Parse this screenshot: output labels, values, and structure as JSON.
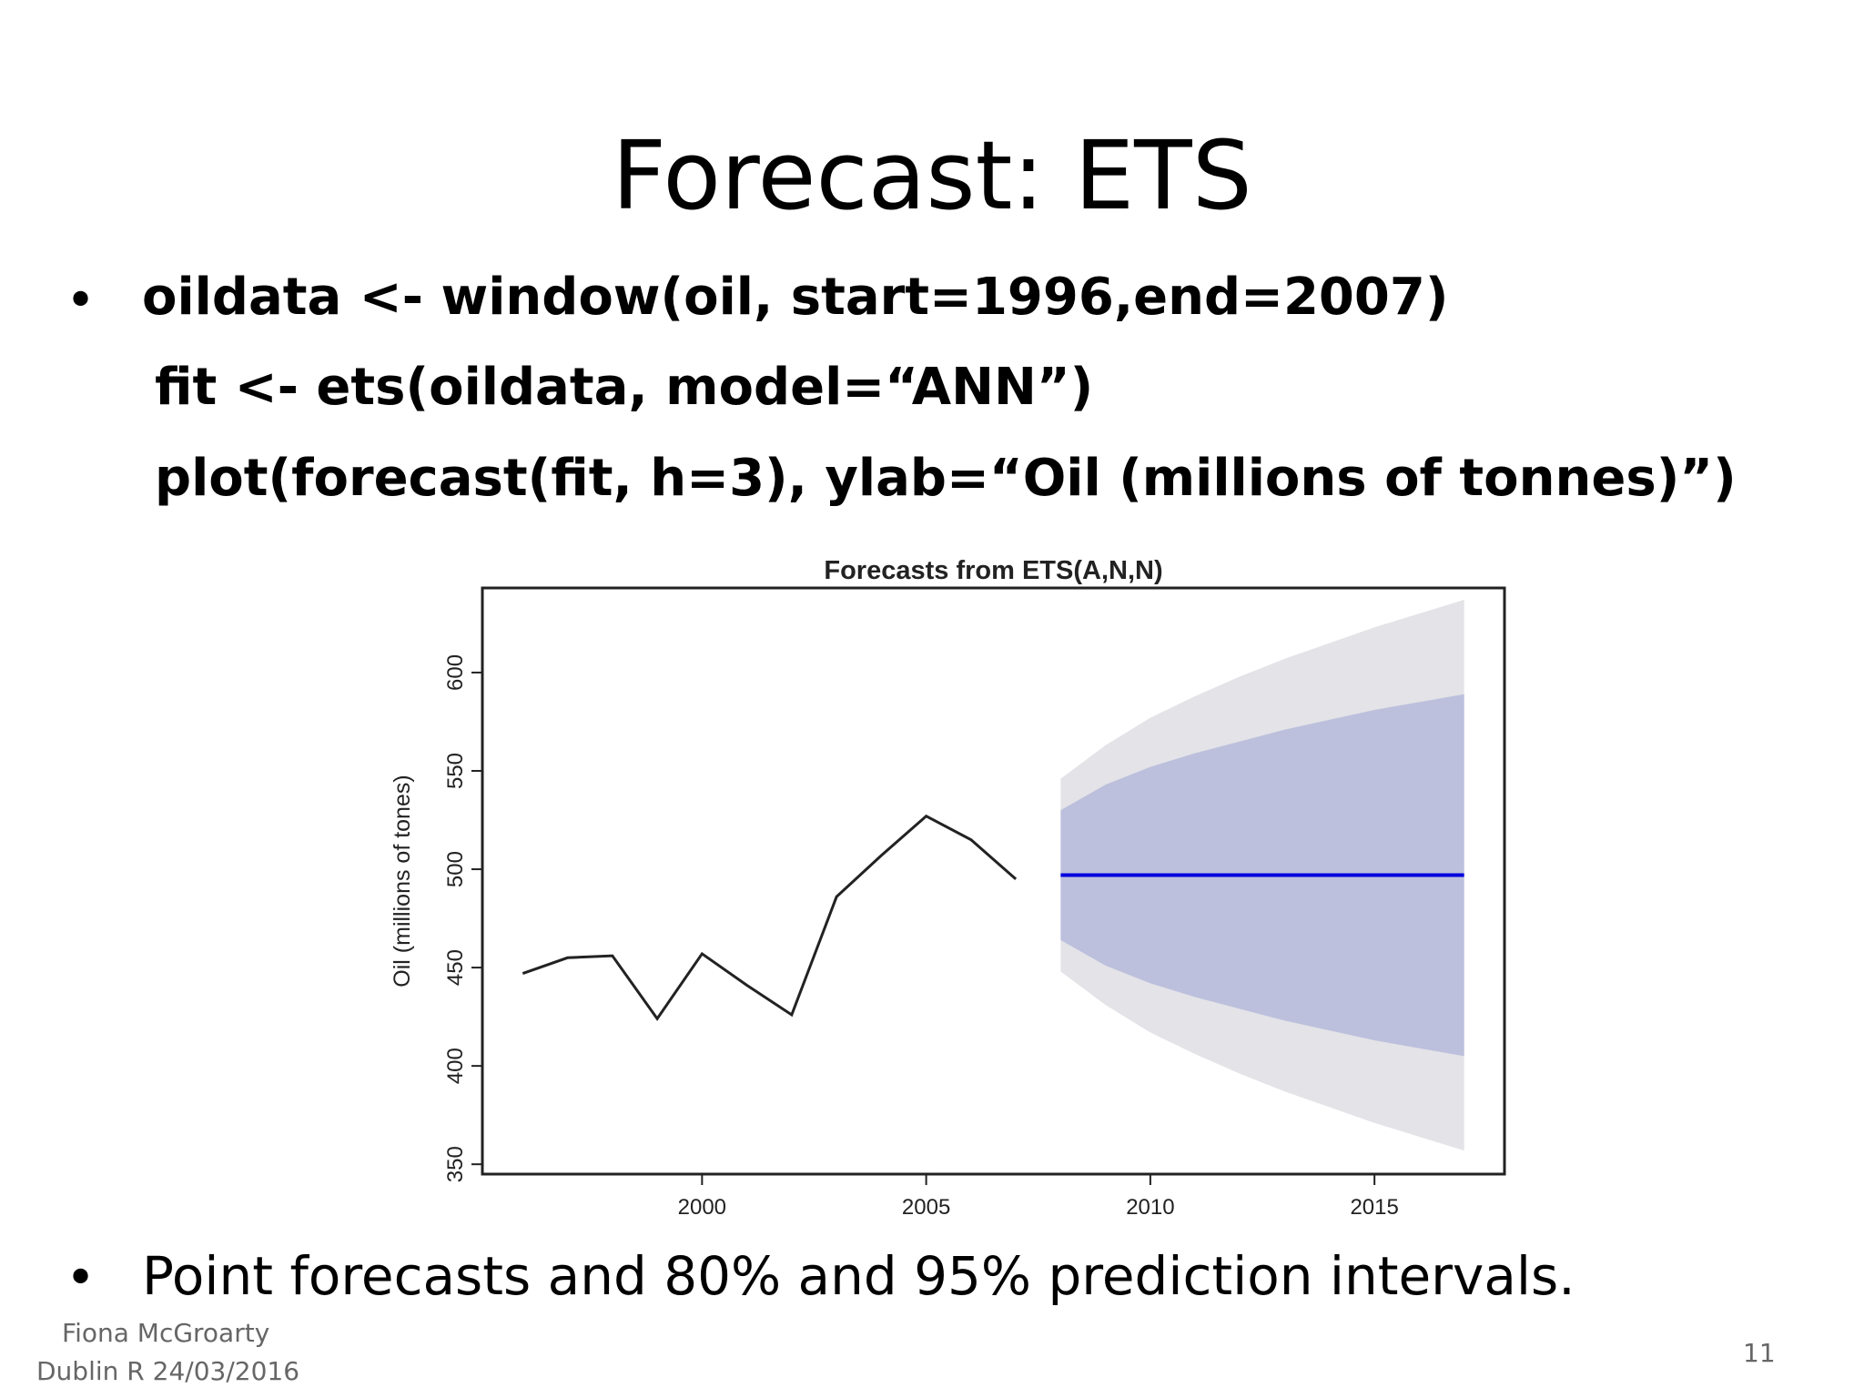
{
  "slide": {
    "title": "Forecast: ETS",
    "code_lines": [
      "oildata <- window(oil, start=1996,end=2007)",
      "fit <- ets(oildata, model=“ANN”)",
      "plot(forecast(fit, h=3), ylab=“Oil (millions of tonnes)”)"
    ],
    "bullet_glyph": "•",
    "bottom_bullet": "Point forecasts and 80% and 95% prediction intervals.",
    "footer_author": "Fiona McGroarty",
    "footer_event": "Dublin R 24/03/2016",
    "page_number": "11"
  },
  "chart_data": {
    "type": "line",
    "title": "Forecasts from ETS(A,N,N)",
    "ylabel": "Oil (millions of tones)",
    "xlabel": "",
    "xlim": [
      1995.1,
      2017.9
    ],
    "ylim": [
      345,
      643
    ],
    "x_ticks": [
      2000,
      2005,
      2010,
      2015
    ],
    "y_ticks": [
      350,
      400,
      450,
      500,
      550,
      600
    ],
    "grid": false,
    "colors": {
      "history": "#222222",
      "forecast": "#0000dd",
      "band80": "#bcc0dc",
      "band95": "#e3e3e8"
    },
    "series": [
      {
        "name": "",
        "x": [
          1996,
          1997,
          1998,
          1999,
          2000,
          2001,
          2002,
          2003,
          2004,
          2005,
          2006,
          2007
        ],
        "values": [
          447,
          455,
          456,
          424,
          457,
          441,
          426,
          486,
          507,
          527,
          515,
          495
        ]
      }
    ],
    "forecast": {
      "x": [
        2008,
        2009,
        2010,
        2011,
        2012,
        2013,
        2014,
        2015,
        2016,
        2017
      ],
      "mean": [
        497,
        497,
        497,
        497,
        497,
        497,
        497,
        497,
        497,
        497
      ],
      "lo80": [
        464,
        451,
        442,
        435,
        429,
        423,
        418,
        413,
        409,
        405
      ],
      "hi80": [
        530,
        543,
        552,
        559,
        565,
        571,
        576,
        581,
        585,
        589
      ],
      "lo95": [
        448,
        431,
        417,
        406,
        396,
        387,
        379,
        371,
        364,
        357
      ],
      "hi95": [
        546,
        563,
        577,
        588,
        598,
        607,
        615,
        623,
        630,
        637
      ]
    }
  }
}
